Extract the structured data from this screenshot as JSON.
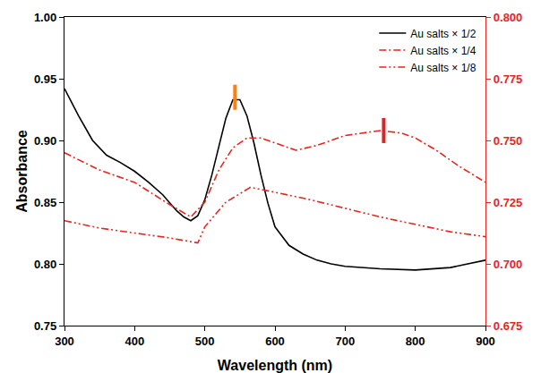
{
  "chart_data": {
    "type": "line",
    "x_label": "Wavelength (nm)",
    "y_label": "Absorbance",
    "xlim": [
      300,
      900
    ],
    "xticks": [
      300,
      400,
      500,
      600,
      700,
      800,
      900
    ],
    "ylim": [
      0.75,
      1.0
    ],
    "yticks": [
      0.75,
      {
        "value": 0.8,
        "label": "0.80"
      },
      0.85,
      {
        "value": 0.9,
        "label": "0.90"
      },
      0.95,
      {
        "value": 1.0,
        "label": "1.00"
      }
    ],
    "y2lim": [
      0.675,
      0.8
    ],
    "y2ticks": [
      0.675,
      {
        "value": 0.7,
        "label": "0.700"
      },
      0.725,
      {
        "value": 0.75,
        "label": "0.750"
      },
      0.775,
      {
        "value": 0.8,
        "label": "0.800"
      }
    ],
    "grid": false,
    "legend": "top right",
    "series": [
      {
        "name": "Au salts × 1/2",
        "color": "#000000",
        "line_style": "solid",
        "axis": "y",
        "x": [
          300,
          320,
          340,
          360,
          380,
          400,
          420,
          440,
          460,
          470,
          480,
          490,
          500,
          510,
          520,
          530,
          540,
          550,
          560,
          570,
          580,
          590,
          600,
          620,
          640,
          660,
          680,
          700,
          750,
          800,
          850,
          900
        ],
        "values": [
          0.942,
          0.92,
          0.9,
          0.888,
          0.882,
          0.875,
          0.866,
          0.856,
          0.843,
          0.838,
          0.835,
          0.839,
          0.852,
          0.872,
          0.895,
          0.918,
          0.933,
          0.933,
          0.92,
          0.898,
          0.872,
          0.849,
          0.83,
          0.815,
          0.808,
          0.803,
          0.8,
          0.798,
          0.796,
          0.795,
          0.797,
          0.803
        ],
        "peak": {
          "x": 543,
          "y": 0.935
        }
      },
      {
        "name": "Au salts × 1/4",
        "color": "#e8251f",
        "line_style": "dashdot",
        "axis": "y2",
        "x": [
          300,
          350,
          400,
          450,
          480,
          500,
          520,
          540,
          560,
          580,
          600,
          630,
          660,
          700,
          750,
          780,
          800,
          830,
          860,
          900
        ],
        "values": [
          0.745,
          0.738,
          0.733,
          0.724,
          0.719,
          0.725,
          0.738,
          0.747,
          0.751,
          0.751,
          0.749,
          0.746,
          0.748,
          0.752,
          0.754,
          0.753,
          0.751,
          0.746,
          0.74,
          0.733
        ],
        "peak": {
          "x": 755,
          "y": 0.754
        }
      },
      {
        "name": "Au salts × 1/8",
        "color": "#e8251f",
        "line_style": "dashdotdot",
        "axis": "y2",
        "x": [
          300,
          350,
          400,
          450,
          490,
          500,
          530,
          565,
          600,
          650,
          700,
          750,
          800,
          850,
          900
        ],
        "values": [
          0.7175,
          0.7145,
          0.7125,
          0.7105,
          0.7085,
          0.715,
          0.725,
          0.731,
          0.729,
          0.726,
          0.7225,
          0.719,
          0.716,
          0.713,
          0.711
        ]
      }
    ]
  }
}
